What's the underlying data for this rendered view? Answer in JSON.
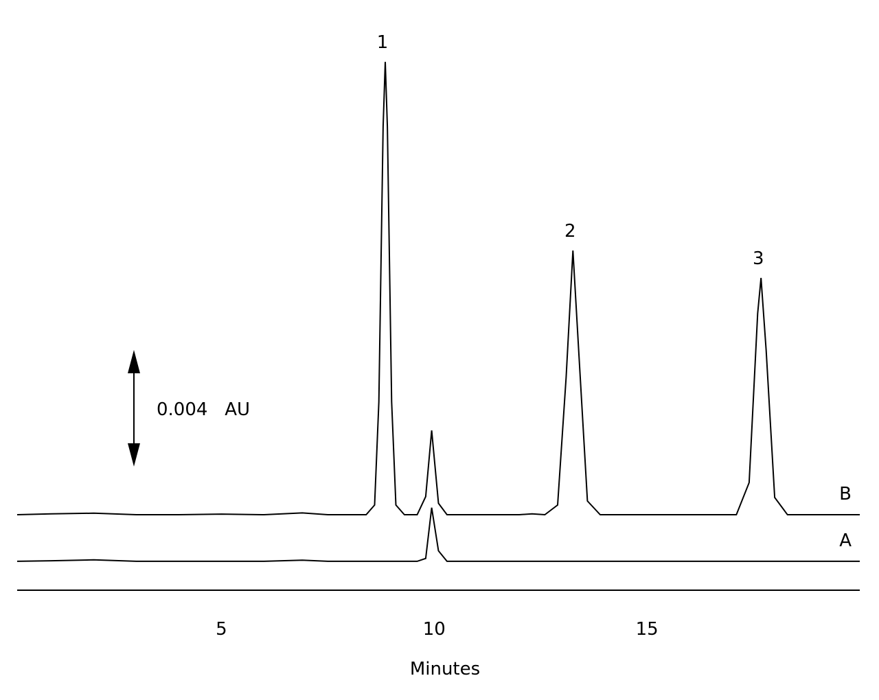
{
  "chart_data": {
    "type": "line",
    "xlabel": "Minutes",
    "x": [
      0.2,
      1,
      2,
      3,
      4,
      5,
      6,
      6.9,
      7.5,
      8.0,
      8.4,
      8.6,
      8.7,
      8.8,
      8.85,
      8.9,
      9.0,
      9.1,
      9.3,
      9.6,
      9.8,
      9.94,
      10.1,
      10.3,
      10.6,
      11,
      12,
      12.3,
      12.6,
      12.9,
      13.1,
      13.26,
      13.4,
      13.6,
      13.9,
      14.5,
      15.5,
      16.5,
      17.1,
      17.4,
      17.6,
      17.68,
      17.8,
      18.0,
      18.3,
      18.8,
      19.4,
      20
    ],
    "series": [
      {
        "name": "B",
        "color": "#000000",
        "values": [
          0.00259,
          0.00262,
          0.00264,
          0.00259,
          0.00259,
          0.00261,
          0.00259,
          0.00265,
          0.00259,
          0.00259,
          0.00259,
          0.00292,
          0.00646,
          0.0159,
          0.01812,
          0.0159,
          0.00646,
          0.00292,
          0.00259,
          0.00259,
          0.00321,
          0.00548,
          0.00298,
          0.00259,
          0.00259,
          0.00259,
          0.00259,
          0.00262,
          0.00259,
          0.00292,
          0.0073,
          0.01165,
          0.00809,
          0.00306,
          0.00259,
          0.00259,
          0.00259,
          0.00259,
          0.00259,
          0.00369,
          0.00949,
          0.01071,
          0.00822,
          0.00318,
          0.00259,
          0.00259,
          0.00259,
          0.00259
        ]
      },
      {
        "name": "A",
        "color": "#000000",
        "values": [
          0.00099,
          0.00101,
          0.00104,
          0.00099,
          0.00099,
          0.00099,
          0.00099,
          0.00103,
          0.00099,
          0.00099,
          0.00099,
          0.00099,
          0.00099,
          0.00099,
          0.00099,
          0.00099,
          0.00099,
          0.00099,
          0.00099,
          0.00099,
          0.00109,
          0.00283,
          0.00135,
          0.00099,
          0.00099,
          0.00099,
          0.00099,
          0.00099,
          0.00099,
          0.00099,
          0.00099,
          0.00099,
          0.00099,
          0.00099,
          0.00099,
          0.00099,
          0.00099,
          0.00099,
          0.00099,
          0.00099,
          0.00099,
          0.00099,
          0.00099,
          0.00099,
          0.00099,
          0.00099,
          0.00099,
          0.00099
        ]
      }
    ],
    "peak_labels": [
      {
        "text": "1",
        "x": 8.85
      },
      {
        "text": "2",
        "x": 13.26
      },
      {
        "text": "3",
        "x": 17.68
      }
    ],
    "scale_bar": {
      "from": 0.00424,
      "to": 0.00824,
      "label": "0.004   AU"
    },
    "xlim": [
      0.2,
      20
    ],
    "ylim": [
      0,
      0.0193
    ],
    "xticks": [
      5,
      10,
      15
    ]
  }
}
